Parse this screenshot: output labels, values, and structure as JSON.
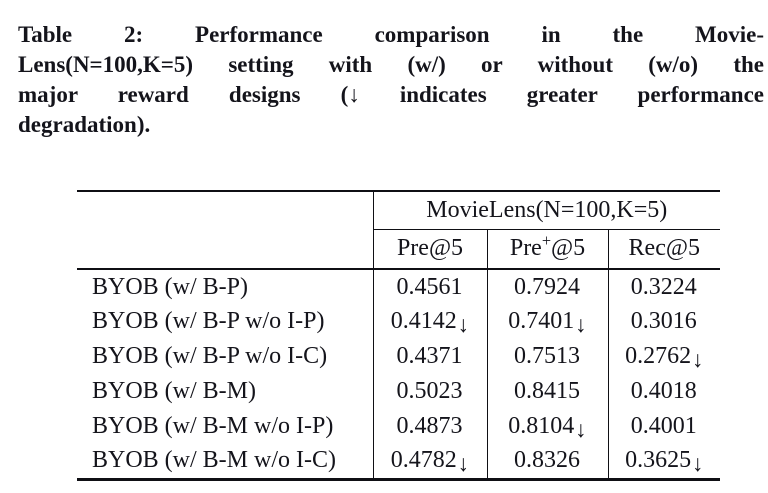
{
  "caption": {
    "lines": [
      "Table 2: Performance comparison in the Movie-",
      "Lens(N=100,K=5) setting with (w/) or without (w/o) the",
      "major reward designs (↓ indicates greater performance",
      "degradation)."
    ]
  },
  "table": {
    "spanner": "MovieLens(N=100,K=5)",
    "columns": [
      {
        "pre": "Pre",
        "sup": "",
        "post": "@5"
      },
      {
        "pre": "Pre",
        "sup": "+",
        "post": "@5"
      },
      {
        "pre": "Rec",
        "sup": "",
        "post": "@5"
      }
    ],
    "rows": [
      {
        "label": "BYOB (w/ B-P)",
        "cells": [
          {
            "value": "0.4561",
            "arrow": ""
          },
          {
            "value": "0.7924",
            "arrow": ""
          },
          {
            "value": "0.3224",
            "arrow": ""
          }
        ]
      },
      {
        "label": "BYOB (w/ B-P w/o I-P)",
        "cells": [
          {
            "value": "0.4142",
            "arrow": "↓"
          },
          {
            "value": "0.7401",
            "arrow": "↓"
          },
          {
            "value": "0.3016",
            "arrow": ""
          }
        ]
      },
      {
        "label": "BYOB (w/ B-P w/o I-C)",
        "cells": [
          {
            "value": "0.4371",
            "arrow": ""
          },
          {
            "value": "0.7513",
            "arrow": ""
          },
          {
            "value": "0.2762",
            "arrow": "↓"
          }
        ]
      },
      {
        "label": "BYOB (w/ B-M)",
        "cells": [
          {
            "value": "0.5023",
            "arrow": ""
          },
          {
            "value": "0.8415",
            "arrow": ""
          },
          {
            "value": "0.4018",
            "arrow": ""
          }
        ]
      },
      {
        "label": "BYOB (w/ B-M w/o I-P)",
        "cells": [
          {
            "value": "0.4873",
            "arrow": ""
          },
          {
            "value": "0.8104",
            "arrow": "↓"
          },
          {
            "value": "0.4001",
            "arrow": ""
          }
        ]
      },
      {
        "label": "BYOB (w/ B-M w/o I-C)",
        "cells": [
          {
            "value": "0.4782",
            "arrow": "↓"
          },
          {
            "value": "0.8326",
            "arrow": ""
          },
          {
            "value": "0.3625",
            "arrow": "↓"
          }
        ]
      }
    ]
  },
  "colors": {
    "background": "#ffffff",
    "text": "#14141b",
    "rule": "#0f0f14"
  }
}
